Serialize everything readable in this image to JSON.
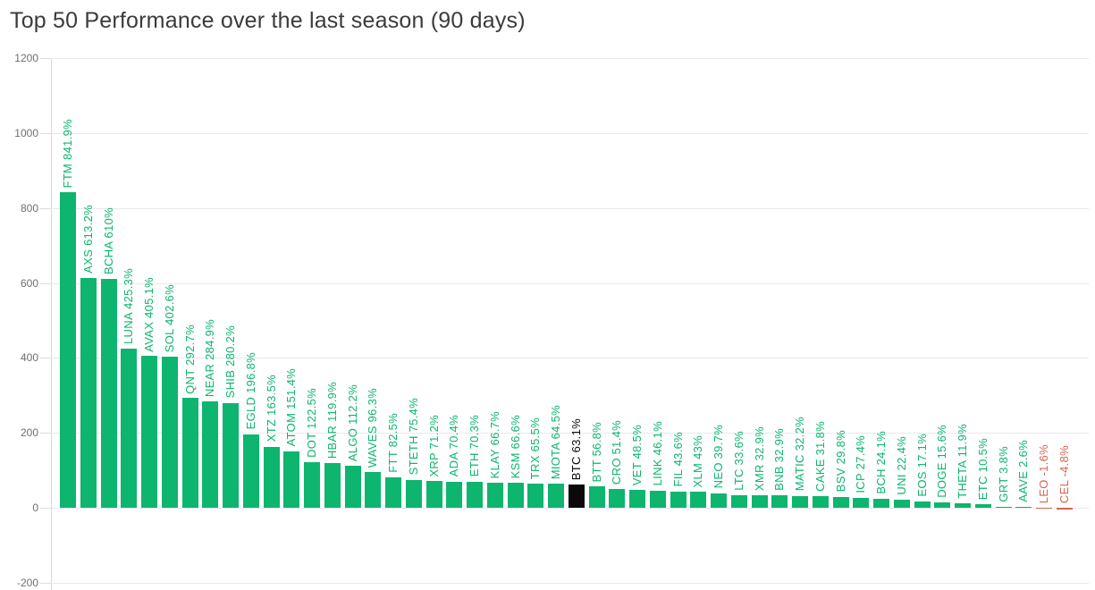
{
  "chart_data": {
    "type": "bar",
    "title": "Top 50 Performance over the last season (90 days)",
    "xlabel": "",
    "ylabel": "",
    "unit": "%",
    "ylim": [
      -200,
      1200
    ],
    "yticks": [
      1200,
      1000,
      800,
      600,
      400,
      200,
      0,
      -200
    ],
    "grid": true,
    "legend_position": "none",
    "colors": {
      "positive": "#0db56f",
      "highlight": "#0a0a0a",
      "negative": "#d8654f"
    },
    "series": [
      {
        "symbol": "FTM",
        "value": 841.9,
        "label": "FTM 841.9%",
        "color": "positive"
      },
      {
        "symbol": "AXS",
        "value": 613.2,
        "label": "AXS 613.2%",
        "color": "positive"
      },
      {
        "symbol": "BCHA",
        "value": 610,
        "label": "BCHA 610%",
        "color": "positive"
      },
      {
        "symbol": "LUNA",
        "value": 425.3,
        "label": "LUNA 425.3%",
        "color": "positive"
      },
      {
        "symbol": "AVAX",
        "value": 405.1,
        "label": "AVAX 405.1%",
        "color": "positive"
      },
      {
        "symbol": "SOL",
        "value": 402.6,
        "label": "SOL 402.6%",
        "color": "positive"
      },
      {
        "symbol": "QNT",
        "value": 292.7,
        "label": "QNT 292.7%",
        "color": "positive"
      },
      {
        "symbol": "NEAR",
        "value": 284.9,
        "label": "NEAR 284.9%",
        "color": "positive"
      },
      {
        "symbol": "SHIB",
        "value": 280.2,
        "label": "SHIB 280.2%",
        "color": "positive"
      },
      {
        "symbol": "EGLD",
        "value": 196.8,
        "label": "EGLD 196.8%",
        "color": "positive"
      },
      {
        "symbol": "XTZ",
        "value": 163.5,
        "label": "XTZ 163.5%",
        "color": "positive"
      },
      {
        "symbol": "ATOM",
        "value": 151.4,
        "label": "ATOM 151.4%",
        "color": "positive"
      },
      {
        "symbol": "DOT",
        "value": 122.5,
        "label": "DOT 122.5%",
        "color": "positive"
      },
      {
        "symbol": "HBAR",
        "value": 119.9,
        "label": "HBAR 119.9%",
        "color": "positive"
      },
      {
        "symbol": "ALGO",
        "value": 112.2,
        "label": "ALGO 112.2%",
        "color": "positive"
      },
      {
        "symbol": "WAVES",
        "value": 96.3,
        "label": "WAVES 96.3%",
        "color": "positive"
      },
      {
        "symbol": "FTT",
        "value": 82.5,
        "label": "FTT 82.5%",
        "color": "positive"
      },
      {
        "symbol": "STETH",
        "value": 75.4,
        "label": "STETH 75.4%",
        "color": "positive"
      },
      {
        "symbol": "XRP",
        "value": 71.2,
        "label": "XRP 71.2%",
        "color": "positive"
      },
      {
        "symbol": "ADA",
        "value": 70.4,
        "label": "ADA 70.4%",
        "color": "positive"
      },
      {
        "symbol": "ETH",
        "value": 70.3,
        "label": "ETH 70.3%",
        "color": "positive"
      },
      {
        "symbol": "KLAY",
        "value": 66.7,
        "label": "KLAY 66.7%",
        "color": "positive"
      },
      {
        "symbol": "KSM",
        "value": 66.6,
        "label": "KSM 66.6%",
        "color": "positive"
      },
      {
        "symbol": "TRX",
        "value": 65.5,
        "label": "TRX 65.5%",
        "color": "positive"
      },
      {
        "symbol": "MIOTA",
        "value": 64.5,
        "label": "MIOTA 64.5%",
        "color": "positive"
      },
      {
        "symbol": "BTC",
        "value": 63.1,
        "label": "BTC 63.1%",
        "color": "highlight"
      },
      {
        "symbol": "BTT",
        "value": 56.8,
        "label": "BTT 56.8%",
        "color": "positive"
      },
      {
        "symbol": "CRO",
        "value": 51.4,
        "label": "CRO 51.4%",
        "color": "positive"
      },
      {
        "symbol": "VET",
        "value": 48.5,
        "label": "VET 48.5%",
        "color": "positive"
      },
      {
        "symbol": "LINK",
        "value": 46.1,
        "label": "LINK 46.1%",
        "color": "positive"
      },
      {
        "symbol": "FIL",
        "value": 43.6,
        "label": "FIL 43.6%",
        "color": "positive"
      },
      {
        "symbol": "XLM",
        "value": 43,
        "label": "XLM 43%",
        "color": "positive"
      },
      {
        "symbol": "NEO",
        "value": 39.7,
        "label": "NEO 39.7%",
        "color": "positive"
      },
      {
        "symbol": "LTC",
        "value": 33.6,
        "label": "LTC 33.6%",
        "color": "positive"
      },
      {
        "symbol": "XMR",
        "value": 32.9,
        "label": "XMR 32.9%",
        "color": "positive"
      },
      {
        "symbol": "BNB",
        "value": 32.9,
        "label": "BNB 32.9%",
        "color": "positive"
      },
      {
        "symbol": "MATIC",
        "value": 32.2,
        "label": "MATIC 32.2%",
        "color": "positive"
      },
      {
        "symbol": "CAKE",
        "value": 31.8,
        "label": "CAKE 31.8%",
        "color": "positive"
      },
      {
        "symbol": "BSV",
        "value": 29.8,
        "label": "BSV 29.8%",
        "color": "positive"
      },
      {
        "symbol": "ICP",
        "value": 27.4,
        "label": "ICP 27.4%",
        "color": "positive"
      },
      {
        "symbol": "BCH",
        "value": 24.1,
        "label": "BCH 24.1%",
        "color": "positive"
      },
      {
        "symbol": "UNI",
        "value": 22.4,
        "label": "UNI 22.4%",
        "color": "positive"
      },
      {
        "symbol": "EOS",
        "value": 17.1,
        "label": "EOS 17.1%",
        "color": "positive"
      },
      {
        "symbol": "DOGE",
        "value": 15.6,
        "label": "DOGE 15.6%",
        "color": "positive"
      },
      {
        "symbol": "THETA",
        "value": 11.9,
        "label": "THETA 11.9%",
        "color": "positive"
      },
      {
        "symbol": "ETC",
        "value": 10.5,
        "label": "ETC 10.5%",
        "color": "positive"
      },
      {
        "symbol": "GRT",
        "value": 3.8,
        "label": "GRT 3.8%",
        "color": "positive"
      },
      {
        "symbol": "AAVE",
        "value": 2.6,
        "label": "AAVE 2.6%",
        "color": "positive"
      },
      {
        "symbol": "LEO",
        "value": -1.6,
        "label": "LEO -1.6%",
        "color": "negative"
      },
      {
        "symbol": "CEL",
        "value": -4.8,
        "label": "CEL -4.8%",
        "color": "negative"
      }
    ]
  }
}
